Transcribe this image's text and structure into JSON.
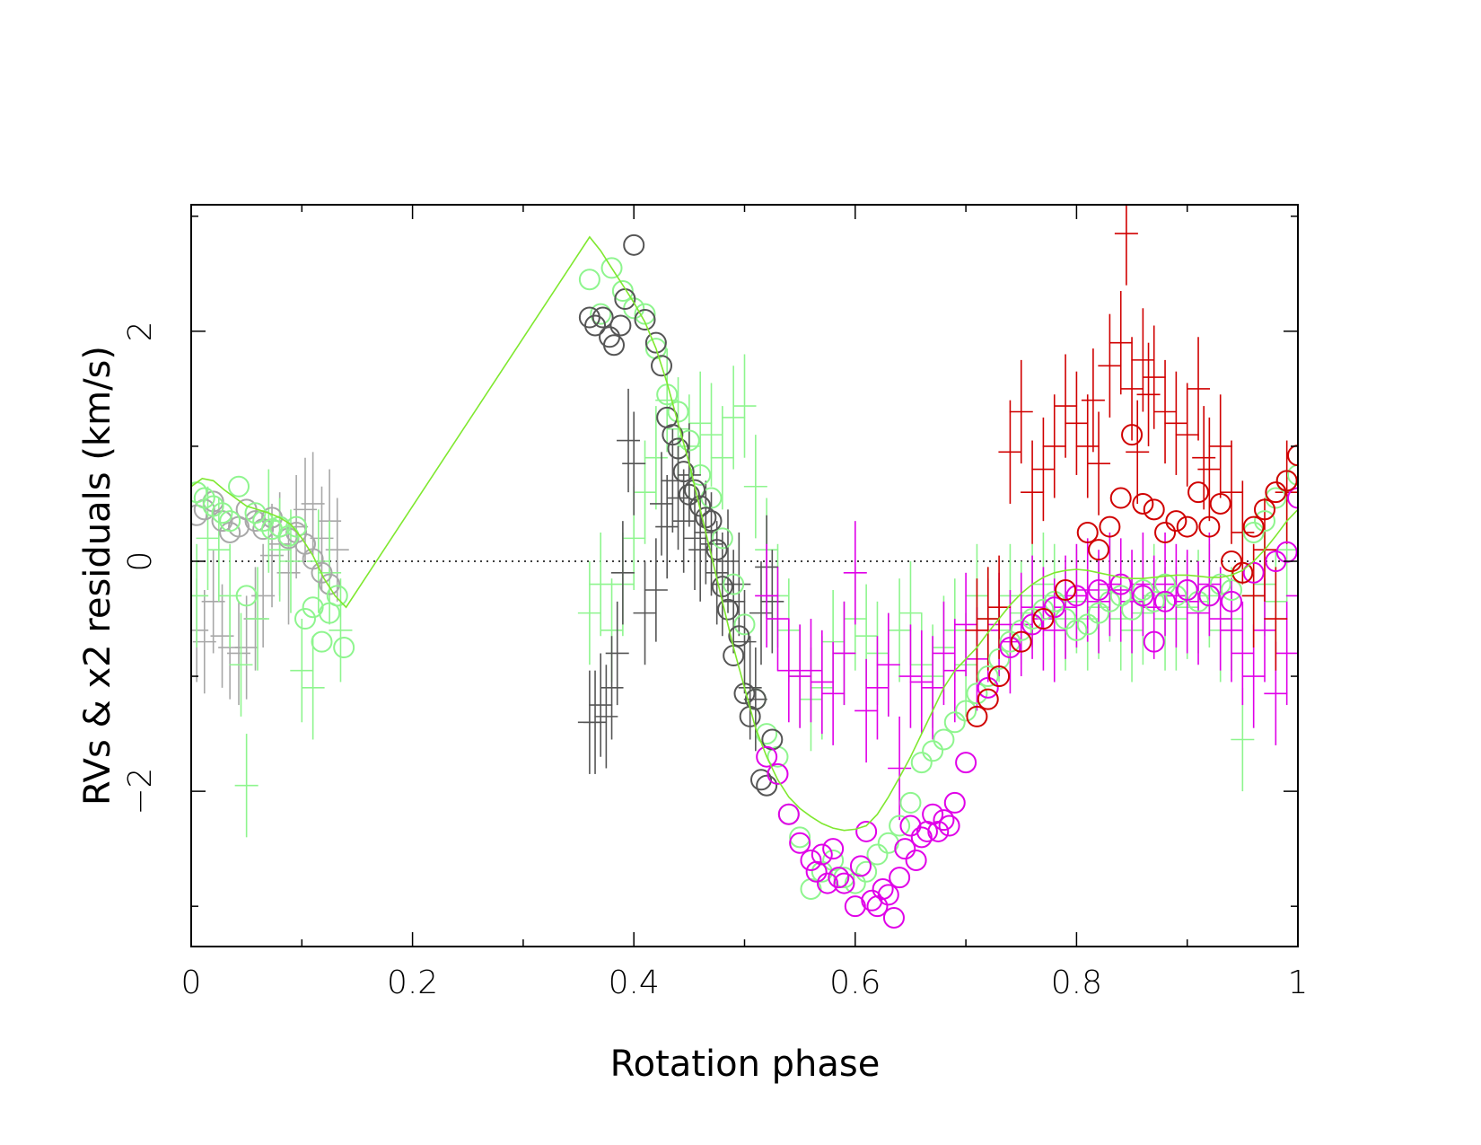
{
  "chart_data": {
    "type": "scatter",
    "xlabel": "Rotation phase",
    "ylabel": "RVs & x2 residuals (km/s)",
    "xlim": [
      0,
      1
    ],
    "ylim": [
      -3.35,
      3.1
    ],
    "grid": false,
    "legend": "none",
    "reference_line": {
      "y": 0,
      "style": "dotted"
    },
    "x_ticks": [
      {
        "value": 0,
        "label": "0"
      },
      {
        "value": 0.2,
        "label": "0.2"
      },
      {
        "value": 0.4,
        "label": "0.4"
      },
      {
        "value": 0.6,
        "label": "0.6"
      },
      {
        "value": 0.8,
        "label": "0.8"
      },
      {
        "value": 1,
        "label": "1"
      }
    ],
    "y_ticks": [
      {
        "value": -2,
        "label": "−2"
      },
      {
        "value": 0,
        "label": "0"
      },
      {
        "value": 2,
        "label": "2"
      }
    ],
    "colors": {
      "light_gray": "#a8a8a8",
      "dark_gray": "#555555",
      "light_green": "#8ef58e",
      "model_green": "#7fe82f",
      "magenta": "#e000e8",
      "red": "#d00000"
    },
    "model_curve": {
      "color": "#7fe82f",
      "x": [
        0.0,
        0.01,
        0.02,
        0.03,
        0.04,
        0.05,
        0.06,
        0.07,
        0.08,
        0.09,
        0.1,
        0.11,
        0.12,
        0.13,
        0.14,
        0.36,
        0.37,
        0.38,
        0.39,
        0.4,
        0.41,
        0.42,
        0.43,
        0.44,
        0.45,
        0.46,
        0.47,
        0.48,
        0.49,
        0.5,
        0.51,
        0.52,
        0.53,
        0.54,
        0.55,
        0.56,
        0.57,
        0.58,
        0.59,
        0.6,
        0.61,
        0.62,
        0.63,
        0.64,
        0.65,
        0.66,
        0.67,
        0.68,
        0.69,
        0.7,
        0.71,
        0.72,
        0.73,
        0.74,
        0.75,
        0.76,
        0.77,
        0.78,
        0.79,
        0.8,
        0.81,
        0.82,
        0.83,
        0.84,
        0.85,
        0.86,
        0.87,
        0.88,
        0.89,
        0.9,
        0.91,
        0.92,
        0.93,
        0.94,
        0.95,
        0.96,
        0.97,
        0.98,
        0.99,
        1.0
      ],
      "y": [
        0.65,
        0.72,
        0.7,
        0.62,
        0.55,
        0.48,
        0.45,
        0.42,
        0.38,
        0.32,
        0.2,
        0.05,
        -0.15,
        -0.3,
        -0.4,
        2.82,
        2.7,
        2.55,
        2.4,
        2.25,
        2.08,
        1.85,
        1.55,
        1.2,
        0.85,
        0.45,
        0.05,
        -0.35,
        -0.75,
        -1.1,
        -1.45,
        -1.7,
        -1.9,
        -2.05,
        -2.15,
        -2.22,
        -2.28,
        -2.32,
        -2.34,
        -2.33,
        -2.3,
        -2.2,
        -2.05,
        -1.88,
        -1.7,
        -1.5,
        -1.3,
        -1.1,
        -0.95,
        -0.85,
        -0.75,
        -0.62,
        -0.5,
        -0.38,
        -0.28,
        -0.2,
        -0.14,
        -0.1,
        -0.08,
        -0.07,
        -0.08,
        -0.1,
        -0.12,
        -0.14,
        -0.15,
        -0.15,
        -0.14,
        -0.13,
        -0.12,
        -0.12,
        -0.13,
        -0.14,
        -0.14,
        -0.12,
        -0.08,
        0.0,
        0.1,
        0.22,
        0.35,
        0.45
      ]
    },
    "series": [
      {
        "marker": "circle",
        "color": "#a8a8a8",
        "x": [
          0.005,
          0.012,
          0.02,
          0.028,
          0.035,
          0.043,
          0.05,
          0.058,
          0.065,
          0.073,
          0.08,
          0.088,
          0.095,
          0.103,
          0.11,
          0.118,
          0.125
        ],
        "y": [
          0.4,
          0.45,
          0.52,
          0.35,
          0.25,
          0.3,
          0.45,
          0.35,
          0.28,
          0.38,
          0.3,
          0.2,
          0.25,
          0.15,
          0.02,
          -0.1,
          -0.2
        ]
      },
      {
        "marker": "circle",
        "color": "#8ef58e",
        "x": [
          0.005,
          0.012,
          0.02,
          0.028,
          0.035,
          0.043,
          0.05,
          0.058,
          0.065,
          0.073,
          0.08,
          0.088,
          0.095,
          0.103,
          0.11,
          0.118,
          0.125,
          0.132,
          0.138,
          0.36,
          0.37,
          0.38,
          0.39,
          0.4,
          0.41,
          0.42,
          0.43,
          0.44,
          0.45,
          0.46,
          0.47,
          0.48,
          0.49,
          0.5,
          0.51,
          0.52,
          0.53,
          0.54,
          0.55,
          0.56,
          0.57,
          0.58,
          0.59,
          0.6,
          0.61,
          0.62,
          0.63,
          0.64,
          0.65,
          0.66,
          0.67,
          0.68,
          0.69,
          0.7,
          0.71,
          0.72,
          0.73,
          0.74,
          0.75,
          0.76,
          0.77,
          0.78,
          0.79,
          0.8,
          0.81,
          0.82,
          0.83,
          0.84,
          0.85,
          0.86,
          0.87,
          0.88,
          0.89,
          0.9,
          0.91,
          0.92,
          0.93,
          0.94,
          0.95,
          0.96,
          0.97,
          0.98,
          0.99,
          1.0
        ],
        "y": [
          0.6,
          0.55,
          0.48,
          0.42,
          0.35,
          0.65,
          -0.3,
          0.42,
          0.35,
          0.28,
          0.3,
          0.22,
          0.3,
          -0.5,
          -0.4,
          -0.7,
          -0.45,
          -0.3,
          -0.75,
          2.45,
          2.15,
          2.55,
          2.35,
          2.2,
          2.15,
          1.85,
          1.45,
          1.3,
          1.05,
          0.75,
          0.55,
          0.2,
          -0.2,
          -0.55,
          -1.2,
          -1.5,
          -1.7,
          -2.2,
          -2.4,
          -2.85,
          -2.7,
          -2.6,
          -2.75,
          -2.8,
          -2.7,
          -2.55,
          -2.45,
          -2.3,
          -2.1,
          -1.75,
          -1.65,
          -1.55,
          -1.4,
          -1.3,
          -1.15,
          -1.0,
          -0.85,
          -0.7,
          -0.6,
          -0.5,
          -0.42,
          -0.35,
          -0.5,
          -0.6,
          -0.55,
          -0.45,
          -0.35,
          -0.3,
          -0.42,
          -0.25,
          -0.35,
          -0.2,
          -0.3,
          -0.25,
          -0.35,
          -0.3,
          -0.2,
          -0.25,
          -0.1,
          0.25,
          0.35,
          0.55,
          0.7,
          0.75
        ]
      },
      {
        "marker": "circle",
        "color": "#555555",
        "x": [
          0.36,
          0.365,
          0.372,
          0.378,
          0.382,
          0.388,
          0.392,
          0.4,
          0.41,
          0.42,
          0.425,
          0.43,
          0.435,
          0.44,
          0.445,
          0.45,
          0.455,
          0.46,
          0.465,
          0.47,
          0.475,
          0.48,
          0.485,
          0.49,
          0.495,
          0.5,
          0.505,
          0.51,
          0.515,
          0.52,
          0.525
        ],
        "y": [
          2.12,
          2.05,
          2.12,
          1.95,
          1.88,
          2.05,
          2.28,
          2.75,
          2.1,
          1.9,
          1.7,
          1.25,
          1.1,
          0.98,
          0.78,
          0.58,
          0.62,
          0.48,
          0.38,
          0.35,
          0.1,
          -0.22,
          -0.42,
          -0.82,
          -0.65,
          -1.15,
          -1.35,
          -1.2,
          -1.9,
          -1.95,
          -1.55
        ]
      },
      {
        "marker": "circle",
        "color": "#e000e8",
        "x": [
          0.52,
          0.53,
          0.54,
          0.55,
          0.56,
          0.565,
          0.57,
          0.575,
          0.58,
          0.585,
          0.59,
          0.6,
          0.605,
          0.61,
          0.615,
          0.62,
          0.625,
          0.63,
          0.635,
          0.64,
          0.645,
          0.65,
          0.655,
          0.66,
          0.665,
          0.67,
          0.675,
          0.68,
          0.685,
          0.69,
          0.7,
          0.72,
          0.74,
          0.76,
          0.78,
          0.8,
          0.82,
          0.84,
          0.86,
          0.87,
          0.88,
          0.9,
          0.92,
          0.94,
          0.96,
          0.98,
          0.99,
          1.0
        ],
        "y": [
          -1.7,
          -1.85,
          -2.2,
          -2.45,
          -2.6,
          -2.7,
          -2.55,
          -2.8,
          -2.5,
          -2.75,
          -2.8,
          -3.0,
          -2.65,
          -2.35,
          -2.95,
          -3.0,
          -2.85,
          -2.9,
          -3.1,
          -2.75,
          -2.5,
          -2.3,
          -2.6,
          -2.4,
          -2.35,
          -2.2,
          -2.35,
          -2.25,
          -2.3,
          -2.1,
          -1.75,
          -1.1,
          -0.75,
          -0.55,
          -0.4,
          -0.3,
          -0.25,
          -0.2,
          -0.3,
          -0.7,
          -0.35,
          -0.25,
          -0.3,
          -0.35,
          -0.1,
          0.0,
          0.08,
          0.55
        ]
      },
      {
        "marker": "circle",
        "color": "#d00000",
        "x": [
          0.71,
          0.72,
          0.73,
          0.75,
          0.77,
          0.79,
          0.81,
          0.82,
          0.83,
          0.84,
          0.85,
          0.86,
          0.87,
          0.88,
          0.89,
          0.9,
          0.91,
          0.92,
          0.93,
          0.94,
          0.95,
          0.96,
          0.97,
          0.98,
          0.99,
          1.0
        ],
        "y": [
          -1.35,
          -1.2,
          -1.0,
          -0.7,
          -0.5,
          -0.25,
          0.25,
          0.1,
          0.3,
          0.55,
          1.1,
          0.5,
          0.45,
          0.25,
          0.35,
          0.3,
          0.6,
          0.3,
          0.5,
          0.0,
          -0.1,
          0.3,
          0.45,
          0.6,
          0.7,
          0.92
        ]
      },
      {
        "marker": "errorbar",
        "color": "#a8a8a8",
        "x": [
          0.005,
          0.012,
          0.02,
          0.028,
          0.035,
          0.043,
          0.05,
          0.058,
          0.065,
          0.073,
          0.08,
          0.088,
          0.095,
          0.103,
          0.11,
          0.118,
          0.125,
          0.132
        ],
        "y": [
          -0.6,
          -0.7,
          -0.35,
          -0.65,
          -0.75,
          -0.8,
          -0.75,
          -0.5,
          -0.3,
          0.05,
          0.15,
          -0.1,
          0.3,
          0.45,
          0.5,
          0.2,
          0.35,
          0.1
        ],
        "yerr": 0.45
      },
      {
        "marker": "errorbar",
        "color": "#8ef58e",
        "x": [
          0.005,
          0.015,
          0.025,
          0.035,
          0.045,
          0.05,
          0.06,
          0.07,
          0.08,
          0.09,
          0.1,
          0.11,
          0.115,
          0.125,
          0.135,
          0.36,
          0.37,
          0.38,
          0.39,
          0.4,
          0.41,
          0.42,
          0.43,
          0.44,
          0.45,
          0.46,
          0.47,
          0.48,
          0.49,
          0.5,
          0.51,
          0.52,
          0.53,
          0.54,
          0.55,
          0.56,
          0.57,
          0.58,
          0.59,
          0.6,
          0.61,
          0.62,
          0.63,
          0.64,
          0.65,
          0.66,
          0.67,
          0.68,
          0.69,
          0.7,
          0.71,
          0.72,
          0.73,
          0.74,
          0.75,
          0.76,
          0.77,
          0.78,
          0.79,
          0.8,
          0.81,
          0.82,
          0.83,
          0.84,
          0.85,
          0.86,
          0.87,
          0.88,
          0.89,
          0.9,
          0.91,
          0.92,
          0.93,
          0.94,
          0.95,
          0.96,
          0.97,
          0.98,
          0.99
        ],
        "y": [
          -0.3,
          0.2,
          0.1,
          -0.3,
          -0.9,
          -1.95,
          -0.5,
          0.35,
          0.1,
          0.0,
          -0.95,
          -1.1,
          0.0,
          -0.1,
          -0.6,
          -0.45,
          -0.2,
          -0.6,
          -0.2,
          0.2,
          0.6,
          0.9,
          1.4,
          1.15,
          1.0,
          1.2,
          1.1,
          0.9,
          1.25,
          1.35,
          0.65,
          0.1,
          -0.3,
          -0.6,
          -1.0,
          -1.2,
          -1.1,
          -0.7,
          -0.8,
          -0.5,
          -0.65,
          -0.8,
          -0.9,
          -0.6,
          -0.45,
          -0.9,
          -1.0,
          -0.75,
          -0.6,
          -0.9,
          -0.3,
          -0.5,
          -0.6,
          -0.3,
          -0.45,
          -0.3,
          -0.2,
          -0.3,
          -0.5,
          -0.35,
          -0.5,
          -0.4,
          -0.25,
          -0.5,
          -0.6,
          -0.45,
          -0.3,
          -0.5,
          -0.5,
          -0.4,
          -0.35,
          -0.3,
          -0.6,
          -0.5,
          -1.55,
          -0.3,
          -0.2,
          -0.35,
          0.1
        ],
        "yerr": 0.45
      },
      {
        "marker": "errorbar",
        "color": "#555555",
        "x": [
          0.36,
          0.365,
          0.37,
          0.375,
          0.38,
          0.385,
          0.39,
          0.395,
          0.4,
          0.41,
          0.42,
          0.425,
          0.43,
          0.435,
          0.44,
          0.445,
          0.45,
          0.455,
          0.46,
          0.465,
          0.47,
          0.475,
          0.48,
          0.485,
          0.49,
          0.495,
          0.5,
          0.505,
          0.51,
          0.515,
          0.52,
          0.525
        ],
        "y": [
          -1.4,
          -1.4,
          -1.25,
          -1.35,
          -1.1,
          -0.8,
          -0.1,
          1.05,
          0.85,
          -0.45,
          -0.25,
          0.5,
          0.3,
          0.7,
          0.55,
          0.35,
          0.75,
          0.2,
          0.1,
          0.25,
          0.15,
          -0.1,
          -0.2,
          0.0,
          -0.35,
          -0.2,
          -0.7,
          -1.1,
          -1.2,
          -0.45,
          -0.05,
          -0.35
        ],
        "yerr": 0.45
      },
      {
        "marker": "errorbar",
        "color": "#e000e8",
        "x": [
          0.52,
          0.53,
          0.54,
          0.55,
          0.56,
          0.57,
          0.58,
          0.59,
          0.6,
          0.61,
          0.62,
          0.63,
          0.64,
          0.65,
          0.66,
          0.67,
          0.68,
          0.69,
          0.7,
          0.71,
          0.72,
          0.73,
          0.74,
          0.75,
          0.76,
          0.77,
          0.78,
          0.79,
          0.8,
          0.81,
          0.82,
          0.83,
          0.84,
          0.85,
          0.86,
          0.87,
          0.88,
          0.89,
          0.9,
          0.91,
          0.92,
          0.93,
          0.94,
          0.95,
          0.96,
          0.97,
          0.98,
          0.99,
          1.0
        ],
        "y": [
          -0.3,
          -0.5,
          -0.95,
          -1.0,
          -0.95,
          -1.05,
          -1.15,
          -0.8,
          -0.1,
          -1.3,
          -1.1,
          -0.9,
          -1.8,
          -1.0,
          -1.05,
          -1.1,
          -0.8,
          -0.95,
          -0.55,
          -0.85,
          -0.6,
          -0.55,
          -0.7,
          -0.55,
          -0.4,
          -0.5,
          -0.6,
          -0.4,
          -0.3,
          -0.25,
          -0.35,
          -0.2,
          -0.25,
          -0.35,
          -0.2,
          -0.4,
          -0.2,
          -0.3,
          -0.35,
          -0.45,
          -0.2,
          -0.5,
          -0.6,
          -0.8,
          -1.0,
          -0.6,
          -1.15,
          -0.8,
          -0.3
        ],
        "yerr": 0.45
      },
      {
        "marker": "errorbar",
        "color": "#d00000",
        "x": [
          0.71,
          0.72,
          0.73,
          0.74,
          0.75,
          0.76,
          0.77,
          0.78,
          0.79,
          0.8,
          0.81,
          0.815,
          0.82,
          0.83,
          0.84,
          0.845,
          0.85,
          0.855,
          0.86,
          0.865,
          0.87,
          0.88,
          0.89,
          0.9,
          0.91,
          0.915,
          0.92,
          0.93,
          0.94,
          0.95,
          0.96,
          0.97,
          0.98,
          0.99
        ],
        "y": [
          -0.6,
          -0.5,
          -0.4,
          0.95,
          1.3,
          0.6,
          0.8,
          1.0,
          1.35,
          1.2,
          1.0,
          1.4,
          0.85,
          1.7,
          1.9,
          2.85,
          1.5,
          0.95,
          1.75,
          1.45,
          1.6,
          1.3,
          1.2,
          1.1,
          1.5,
          0.9,
          0.8,
          1.0,
          0.6,
          0.25,
          -0.3,
          0.1,
          -0.5,
          0.6
        ],
        "yerr": 0.45
      }
    ]
  }
}
